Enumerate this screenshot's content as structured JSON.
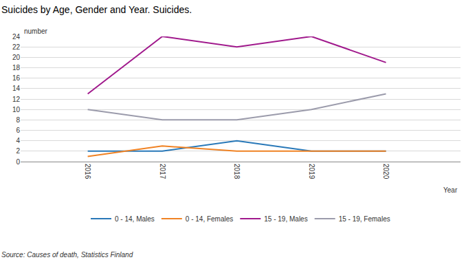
{
  "chart_data": {
    "type": "line",
    "title": "Suicides by Age, Gender and Year. Suicides.",
    "ylabel": "number",
    "xlabel": "Year",
    "annotations": [
      "Source: Causes of death, Statistics Finland"
    ],
    "x": [
      2016,
      2017,
      2018,
      2019,
      2020
    ],
    "xlim": [
      2015.1,
      2021
    ],
    "xticks": [
      2016,
      2017,
      2018,
      2019,
      2020
    ],
    "ylim": [
      0,
      24
    ],
    "yticks": [
      0,
      2,
      4,
      6,
      8,
      10,
      12,
      14,
      16,
      18,
      20,
      22,
      24
    ],
    "grid": true,
    "legend": "bottom",
    "series": [
      {
        "name": "0 - 14, Males",
        "color": "#2878b8",
        "values": [
          2,
          2,
          4,
          2,
          2
        ]
      },
      {
        "name": "0 - 14, Females",
        "color": "#f08223",
        "values": [
          1,
          3,
          2,
          2,
          2
        ]
      },
      {
        "name": "15 - 19, Males",
        "color": "#a0198c",
        "values": [
          13,
          24,
          22,
          24,
          19
        ]
      },
      {
        "name": "15 - 19, Females",
        "color": "#9b9bab",
        "values": [
          10,
          8,
          8,
          10,
          13
        ]
      }
    ]
  }
}
